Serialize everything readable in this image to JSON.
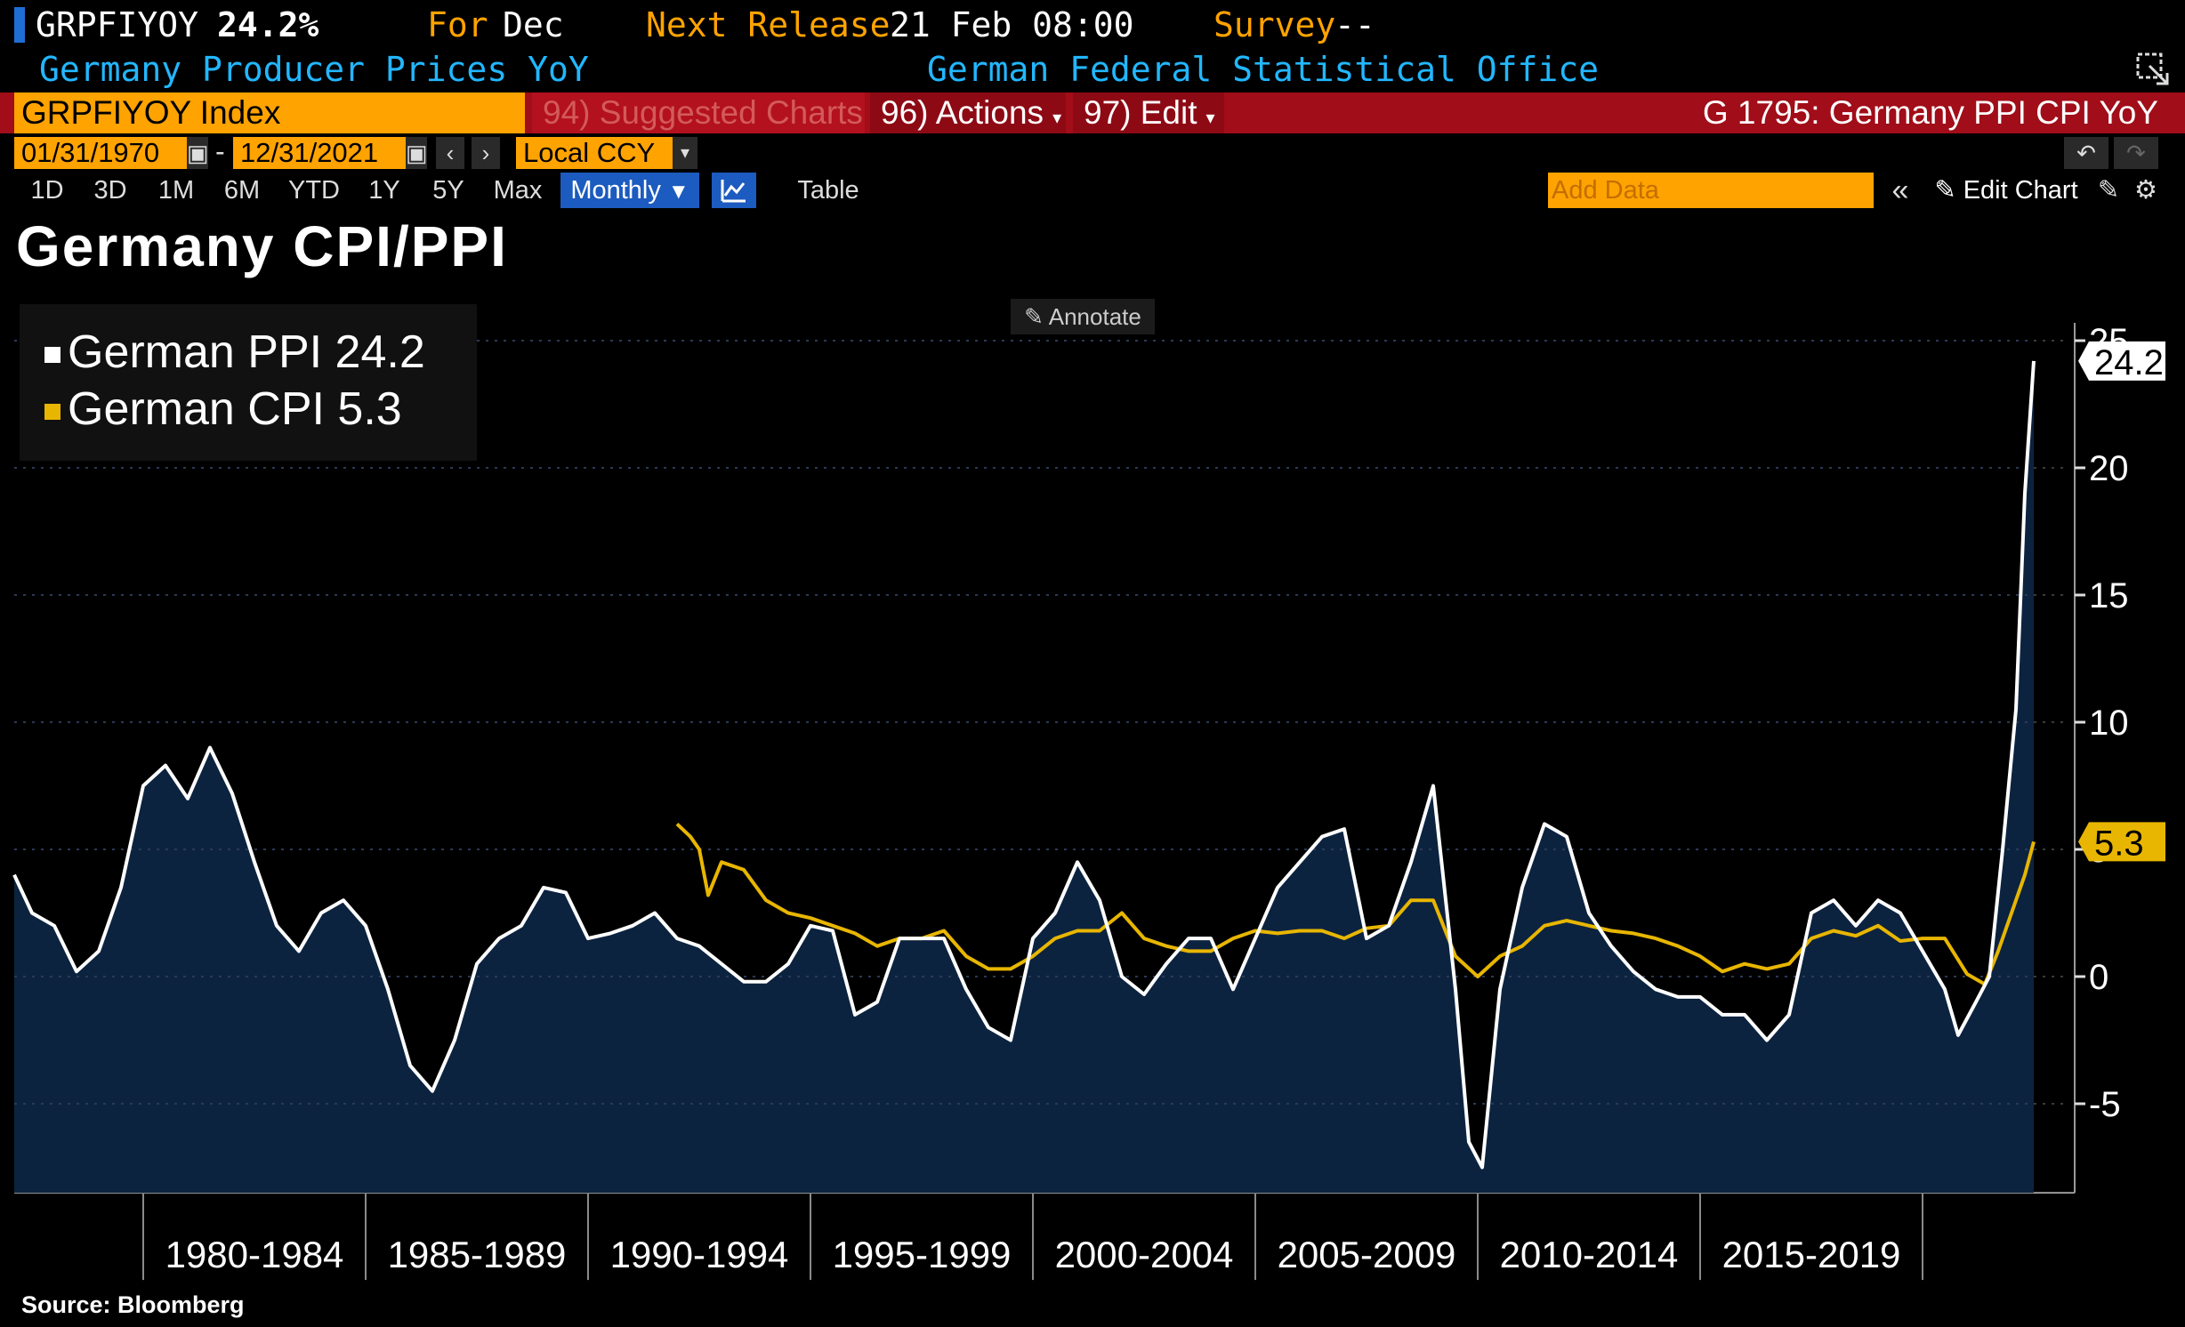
{
  "header": {
    "ticker": "GRPFIYOY",
    "value": "24.2%",
    "for_label": "For",
    "for_value": "Dec",
    "next_release_label": "Next Release",
    "next_release_value": "21 Feb 08:00",
    "survey_label": "Survey",
    "survey_value": "--",
    "description": "Germany Producer Prices YoY",
    "source_agency": "German Federal Statistical Office"
  },
  "toolbar": {
    "security": "GRPFIYOY Index",
    "suggested": "94) Suggested Charts",
    "actions": "96) Actions",
    "edit": "97) Edit",
    "chart_id": "G 1795: Germany PPI CPI YoY",
    "start_date": "01/31/1970",
    "end_date": "12/31/2021",
    "date_sep": "-",
    "currency": "Local CCY",
    "periods": [
      "1D",
      "3D",
      "1M",
      "6M",
      "YTD",
      "1Y",
      "5Y",
      "Max"
    ],
    "frequency": "Monthly",
    "table_label": "Table",
    "add_data_placeholder": "Add Data",
    "edit_chart_label": "Edit Chart"
  },
  "chart_title": "Germany CPI/PPI",
  "annotate_label": "Annotate",
  "source_label": "Source: Bloomberg",
  "colors": {
    "ppi": "#ffffff",
    "cpi": "#e8b600",
    "fill": "#0c2340",
    "accent": "#ffa300",
    "red": "#a10d18"
  },
  "chart_data": {
    "type": "line",
    "title": "Germany CPI/PPI",
    "x_range": [
      1976.6,
      2022.0
    ],
    "ylim": [
      -8.5,
      25
    ],
    "yticks": [
      -5,
      0,
      5,
      10,
      15,
      20,
      25
    ],
    "ytick_labels": [
      "-5",
      "0",
      "5",
      "10",
      "15",
      "20",
      "25"
    ],
    "x_groups": [
      "1980-1984",
      "1985-1989",
      "1990-1994",
      "1995-1999",
      "2000-2004",
      "2005-2009",
      "2010-2014",
      "2015-2019"
    ],
    "x_group_bounds": [
      1979.5,
      1984.5,
      1989.5,
      1994.5,
      1999.5,
      2004.5,
      2009.5,
      2014.5,
      2019.5
    ],
    "series": [
      {
        "name": "German PPI",
        "last_label": "24.2",
        "legend": "German PPI 24.2",
        "x": [
          1976.6,
          1977.0,
          1977.5,
          1978.0,
          1978.5,
          1979.0,
          1979.5,
          1980.0,
          1980.5,
          1981.0,
          1981.5,
          1982.0,
          1982.5,
          1983.0,
          1983.5,
          1984.0,
          1984.5,
          1985.0,
          1985.5,
          1986.0,
          1986.5,
          1987.0,
          1987.5,
          1988.0,
          1988.5,
          1989.0,
          1989.5,
          1990.0,
          1990.5,
          1991.0,
          1991.5,
          1992.0,
          1992.5,
          1993.0,
          1993.5,
          1994.0,
          1994.5,
          1995.0,
          1995.5,
          1996.0,
          1996.5,
          1997.0,
          1997.5,
          1998.0,
          1998.5,
          1999.0,
          1999.5,
          2000.0,
          2000.5,
          2001.0,
          2001.5,
          2002.0,
          2002.5,
          2003.0,
          2003.5,
          2004.0,
          2004.5,
          2005.0,
          2005.5,
          2006.0,
          2006.5,
          2007.0,
          2007.5,
          2008.0,
          2008.5,
          2009.0,
          2009.3,
          2009.6,
          2010.0,
          2010.5,
          2011.0,
          2011.5,
          2012.0,
          2012.5,
          2013.0,
          2013.5,
          2014.0,
          2014.5,
          2015.0,
          2015.5,
          2016.0,
          2016.5,
          2017.0,
          2017.5,
          2018.0,
          2018.5,
          2019.0,
          2019.5,
          2020.0,
          2020.3,
          2020.7,
          2021.0,
          2021.3,
          2021.6,
          2021.8,
          2022.0
        ],
        "y": [
          4.0,
          2.5,
          2.0,
          0.2,
          1.0,
          3.5,
          7.5,
          8.3,
          7.0,
          9.0,
          7.2,
          4.5,
          2.0,
          1.0,
          2.5,
          3.0,
          2.0,
          -0.5,
          -3.5,
          -4.5,
          -2.5,
          0.5,
          1.5,
          2.0,
          3.5,
          3.3,
          1.5,
          1.7,
          2.0,
          2.5,
          1.5,
          1.2,
          0.5,
          -0.2,
          -0.2,
          0.5,
          2.0,
          1.8,
          -1.5,
          -1.0,
          1.5,
          1.5,
          1.5,
          -0.5,
          -2.0,
          -2.5,
          1.5,
          2.5,
          4.5,
          3.0,
          0.0,
          -0.7,
          0.5,
          1.5,
          1.5,
          -0.5,
          1.5,
          3.5,
          4.5,
          5.5,
          5.8,
          1.5,
          2.0,
          4.5,
          7.5,
          -0.5,
          -6.5,
          -7.5,
          -0.5,
          3.5,
          6.0,
          5.5,
          2.5,
          1.2,
          0.2,
          -0.5,
          -0.8,
          -0.8,
          -1.5,
          -1.5,
          -2.5,
          -1.5,
          2.5,
          3.0,
          2.0,
          3.0,
          2.5,
          1.0,
          -0.5,
          -2.3,
          -1.0,
          0.0,
          5.0,
          10.5,
          19.0,
          24.2
        ],
        "color": "#ffffff"
      },
      {
        "name": "German CPI",
        "last_label": "5.3",
        "legend": "German CPI 5.3",
        "x": [
          1991.5,
          1991.8,
          1992.0,
          1992.2,
          1992.5,
          1993.0,
          1993.5,
          1994.0,
          1994.5,
          1995.0,
          1995.5,
          1996.0,
          1996.5,
          1997.0,
          1997.5,
          1998.0,
          1998.5,
          1999.0,
          1999.5,
          2000.0,
          2000.5,
          2001.0,
          2001.5,
          2002.0,
          2002.5,
          2003.0,
          2003.5,
          2004.0,
          2004.5,
          2005.0,
          2005.5,
          2006.0,
          2006.5,
          2007.0,
          2007.5,
          2008.0,
          2008.5,
          2009.0,
          2009.5,
          2010.0,
          2010.5,
          2011.0,
          2011.5,
          2012.0,
          2012.5,
          2013.0,
          2013.5,
          2014.0,
          2014.5,
          2015.0,
          2015.5,
          2016.0,
          2016.5,
          2017.0,
          2017.5,
          2018.0,
          2018.5,
          2019.0,
          2019.5,
          2020.0,
          2020.5,
          2020.9,
          2021.2,
          2021.5,
          2021.8,
          2022.0
        ],
        "y": [
          6.0,
          5.5,
          5.0,
          3.2,
          4.5,
          4.2,
          3.0,
          2.5,
          2.3,
          2.0,
          1.7,
          1.2,
          1.5,
          1.5,
          1.8,
          0.8,
          0.3,
          0.3,
          0.8,
          1.5,
          1.8,
          1.8,
          2.5,
          1.5,
          1.2,
          1.0,
          1.0,
          1.5,
          1.8,
          1.7,
          1.8,
          1.8,
          1.5,
          1.9,
          2.0,
          3.0,
          3.0,
          0.8,
          0.0,
          0.8,
          1.2,
          2.0,
          2.2,
          2.0,
          1.8,
          1.7,
          1.5,
          1.2,
          0.8,
          0.2,
          0.5,
          0.3,
          0.5,
          1.5,
          1.8,
          1.6,
          2.0,
          1.4,
          1.5,
          1.5,
          0.1,
          -0.3,
          1.0,
          2.5,
          4.0,
          5.3
        ],
        "color": "#e8b600"
      }
    ]
  }
}
